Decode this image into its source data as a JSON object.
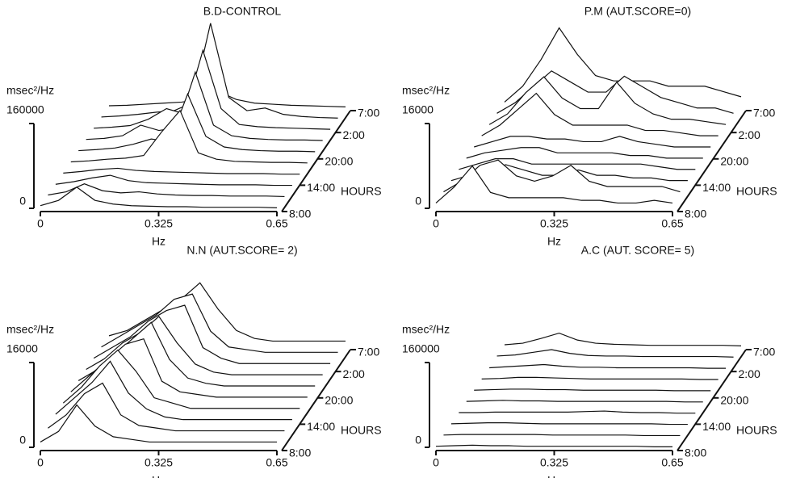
{
  "chart_data": [
    {
      "type": "waterfall",
      "title": "B.D-CONTROL",
      "y_label": "msec²/Hz",
      "ylim": [
        0,
        160000
      ],
      "yticks": [
        0,
        160000
      ],
      "x_label": "Hz",
      "xlim": [
        0,
        0.65
      ],
      "xticks": [
        0,
        0.325,
        0.65
      ],
      "z_label": "HOURS",
      "z_ticks": [
        "8:00",
        "14:00",
        "20:00",
        "2:00",
        "7:00"
      ],
      "x": [
        0,
        0.05,
        0.1,
        0.15,
        0.2,
        0.25,
        0.3,
        0.35,
        0.4,
        0.45,
        0.5,
        0.55,
        0.6,
        0.65
      ],
      "rows": [
        [
          5000,
          15000,
          40000,
          15000,
          8000,
          5000,
          4000,
          3000,
          3000,
          2000,
          2000,
          2000,
          2000,
          1000
        ],
        [
          4000,
          10000,
          25000,
          12000,
          8000,
          10000,
          6000,
          4000,
          3000,
          3000,
          2000,
          2000,
          2000,
          1000
        ],
        [
          3000,
          8000,
          15000,
          20000,
          10000,
          6000,
          5000,
          4000,
          3000,
          2000,
          2000,
          2000,
          1000,
          1000
        ],
        [
          3000,
          6000,
          10000,
          12000,
          8000,
          6000,
          5000,
          4000,
          3000,
          2000,
          2000,
          2000,
          1000,
          1000
        ],
        [
          3000,
          5000,
          8000,
          10000,
          15000,
          60000,
          100000,
          20000,
          8000,
          4000,
          3000,
          2000,
          2000,
          1000
        ],
        [
          3000,
          5000,
          8000,
          15000,
          25000,
          20000,
          110000,
          30000,
          10000,
          5000,
          3000,
          2000,
          2000,
          1000
        ],
        [
          3000,
          5000,
          10000,
          30000,
          20000,
          25000,
          130000,
          30000,
          10000,
          5000,
          3000,
          2000,
          2000,
          1000
        ],
        [
          3000,
          5000,
          8000,
          20000,
          40000,
          30000,
          150000,
          40000,
          10000,
          6000,
          4000,
          3000,
          2000,
          1000
        ],
        [
          3000,
          5000,
          8000,
          12000,
          15000,
          30000,
          180000,
          40000,
          15000,
          20000,
          8000,
          4000,
          2000,
          1000
        ],
        [
          3000,
          4000,
          6000,
          8000,
          10000,
          15000,
          30000,
          15000,
          8000,
          6000,
          4000,
          3000,
          2000,
          1000
        ]
      ]
    },
    {
      "type": "waterfall",
      "title": "P.M (AUT.SCORE=0)",
      "y_label": "msec²/Hz",
      "ylim": [
        0,
        16000
      ],
      "yticks": [
        0,
        16000
      ],
      "x_label": "Hz",
      "xlim": [
        0,
        0.65
      ],
      "xticks": [
        0,
        0.325,
        0.65
      ],
      "z_label": "HOURS",
      "z_ticks": [
        "8:00",
        "14:00",
        "20:00",
        "2:00",
        "7:00"
      ],
      "x": [
        0,
        0.05,
        0.1,
        0.15,
        0.2,
        0.25,
        0.3,
        0.35,
        0.4,
        0.45,
        0.5,
        0.55,
        0.6,
        0.65
      ],
      "rows": [
        [
          1000,
          4000,
          8000,
          3000,
          2000,
          2000,
          2000,
          2000,
          1500,
          1500,
          1000,
          1000,
          1500,
          1000
        ],
        [
          1000,
          3000,
          6000,
          7000,
          4000,
          3000,
          4000,
          6000,
          3000,
          2000,
          2000,
          2000,
          2000,
          1000
        ],
        [
          1000,
          2000,
          3000,
          4000,
          3000,
          2000,
          2000,
          3000,
          2000,
          2000,
          1500,
          1500,
          1000,
          1000
        ],
        [
          1000,
          2000,
          3000,
          3000,
          2000,
          2000,
          2000,
          2000,
          2000,
          2000,
          2000,
          1500,
          1000,
          1000
        ],
        [
          1000,
          2000,
          2500,
          3000,
          3000,
          2000,
          2000,
          2000,
          2000,
          1500,
          1500,
          1000,
          1000,
          1000
        ],
        [
          1000,
          2000,
          3000,
          3000,
          2500,
          2500,
          2000,
          2000,
          3000,
          2000,
          1500,
          1000,
          1000,
          1000
        ],
        [
          1000,
          3000,
          6000,
          9000,
          5000,
          3000,
          3000,
          3000,
          3000,
          2000,
          2000,
          1500,
          1000,
          1000
        ],
        [
          1000,
          3000,
          7000,
          10000,
          6000,
          4000,
          4000,
          9000,
          5000,
          3000,
          2000,
          2000,
          1500,
          1000
        ],
        [
          1000,
          3000,
          6000,
          9000,
          7000,
          5000,
          5000,
          8000,
          6000,
          4000,
          3000,
          2000,
          2000,
          1000
        ],
        [
          1000,
          4000,
          9000,
          15000,
          10000,
          6000,
          5000,
          5000,
          5000,
          4000,
          4000,
          4000,
          3000,
          2000
        ]
      ]
    },
    {
      "type": "waterfall",
      "title": "N.N (AUT.SCORE= 2)",
      "y_label": "msec²/Hz",
      "ylim": [
        0,
        16000
      ],
      "yticks": [
        0,
        16000
      ],
      "x_label": "Hz",
      "xlim": [
        0,
        0.65
      ],
      "xticks": [
        0,
        0.325,
        0.65
      ],
      "z_label": "HOURS",
      "z_ticks": [
        "8:00",
        "14:00",
        "20:00",
        "2:00",
        "7:00"
      ],
      "x": [
        0,
        0.05,
        0.1,
        0.15,
        0.2,
        0.25,
        0.3,
        0.35,
        0.4,
        0.45,
        0.5,
        0.55,
        0.6,
        0.65
      ],
      "rows": [
        [
          1000,
          3000,
          8000,
          4000,
          2000,
          1500,
          1000,
          1000,
          1000,
          1000,
          1000,
          1000,
          1000,
          1000
        ],
        [
          1500,
          4000,
          8000,
          10000,
          4000,
          2000,
          1500,
          1000,
          1000,
          1000,
          1000,
          1000,
          1000,
          1000
        ],
        [
          2000,
          5000,
          8000,
          12000,
          6000,
          3000,
          1500,
          1000,
          1000,
          1000,
          1000,
          1000,
          1000,
          1000
        ],
        [
          2000,
          5000,
          9000,
          12000,
          8000,
          3000,
          2000,
          1000,
          1000,
          1000,
          1000,
          1000,
          1000,
          1000
        ],
        [
          2000,
          5000,
          8000,
          11000,
          12000,
          4000,
          2000,
          1500,
          1000,
          1000,
          1000,
          1000,
          1000,
          1000
        ],
        [
          2000,
          4000,
          7000,
          10000,
          13000,
          6000,
          2500,
          1500,
          1000,
          1000,
          1000,
          1000,
          1000,
          1000
        ],
        [
          2000,
          4000,
          7000,
          9000,
          12000,
          7000,
          3000,
          1500,
          1000,
          1000,
          1000,
          1000,
          1000,
          1000
        ],
        [
          2000,
          4000,
          6000,
          9000,
          11000,
          12000,
          4000,
          2000,
          1000,
          1000,
          1000,
          1000,
          1000,
          1000
        ],
        [
          2000,
          4000,
          6000,
          8000,
          11000,
          12000,
          5000,
          2000,
          1500,
          1000,
          1000,
          1000,
          1000,
          1000
        ],
        [
          2000,
          3000,
          5000,
          7000,
          9000,
          12000,
          7000,
          3000,
          1500,
          1000,
          1000,
          1000,
          1000,
          1000
        ]
      ]
    },
    {
      "type": "waterfall",
      "title": "A.C (AUT. SCORE= 5)",
      "y_label": "msec²/Hz",
      "ylim": [
        0,
        160000
      ],
      "yticks": [
        0,
        160000
      ],
      "x_label": "Hz",
      "xlim": [
        0,
        0.65
      ],
      "xticks": [
        0,
        0.325,
        0.65
      ],
      "z_label": "HOURS",
      "z_ticks": [
        "8:00",
        "14:00",
        "20:00",
        "2:00",
        "7:00"
      ],
      "x": [
        0,
        0.05,
        0.1,
        0.15,
        0.2,
        0.25,
        0.3,
        0.35,
        0.4,
        0.45,
        0.5,
        0.55,
        0.6,
        0.65
      ],
      "rows": [
        [
          2000,
          3000,
          4000,
          3000,
          3000,
          2000,
          2000,
          2000,
          2000,
          2000,
          2000,
          2000,
          1000,
          1000
        ],
        [
          2000,
          3000,
          3000,
          3000,
          3000,
          3000,
          2000,
          2000,
          2000,
          2000,
          2000,
          1000,
          1000,
          1000
        ],
        [
          2000,
          3000,
          4000,
          4000,
          3000,
          2000,
          2000,
          2000,
          2000,
          2000,
          2000,
          2000,
          1000,
          1000
        ],
        [
          2000,
          2000,
          3000,
          3000,
          3000,
          3000,
          3000,
          4000,
          5000,
          3000,
          2000,
          2000,
          1000,
          1000
        ],
        [
          2000,
          3000,
          4000,
          3000,
          3000,
          2000,
          2000,
          2000,
          2000,
          2000,
          2000,
          2000,
          1000,
          1000
        ],
        [
          2000,
          3000,
          4000,
          4000,
          3000,
          3000,
          2000,
          2000,
          2000,
          2000,
          2000,
          1000,
          1000,
          1000
        ],
        [
          2000,
          3000,
          5000,
          5000,
          4000,
          3000,
          2000,
          2000,
          2000,
          2000,
          2000,
          2000,
          1000,
          1000
        ],
        [
          2000,
          4000,
          6000,
          8000,
          5000,
          3000,
          3000,
          2000,
          2000,
          2000,
          2000,
          2000,
          1000,
          1000
        ],
        [
          3000,
          5000,
          10000,
          15000,
          8000,
          4000,
          3000,
          3000,
          2000,
          2000,
          2000,
          2000,
          2000,
          1000
        ],
        [
          3000,
          6000,
          15000,
          25000,
          12000,
          6000,
          4000,
          3000,
          2000,
          2000,
          2000,
          2000,
          2000,
          1000
        ]
      ]
    }
  ]
}
